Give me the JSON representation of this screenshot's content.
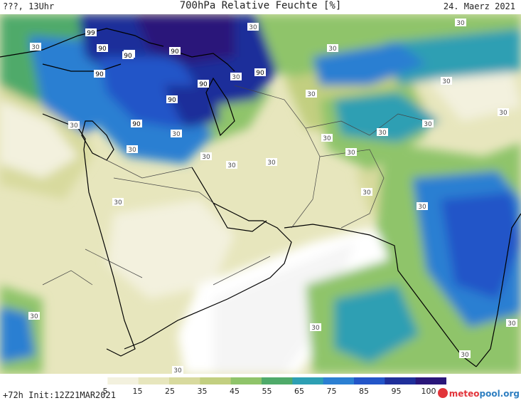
{
  "header": {
    "left": "???, 13Uhr",
    "title": "700hPa Relative Feuchte [%]",
    "date": "24. Maerz 2021"
  },
  "footer": {
    "run_info": "+72h Init:12Z21MAR2021",
    "brand_part1": "meteo",
    "brand_part2": "pool.org"
  },
  "legend": {
    "ticks": [
      "5",
      "15",
      "25",
      "35",
      "45",
      "55",
      "65",
      "75",
      "85",
      "95",
      "100"
    ],
    "colors": [
      "#ffffff",
      "#f3f1de",
      "#e7e6bd",
      "#d8da9e",
      "#c2cf80",
      "#8fc46a",
      "#4faa6a",
      "#2d9fb3",
      "#2b7fd2",
      "#2355c8",
      "#1f2f9a",
      "#2a167a"
    ]
  },
  "map_labels": {
    "values": [
      "99",
      "90",
      "90",
      "90",
      "90",
      "90",
      "90",
      "90",
      "90",
      "90",
      "30",
      "30",
      "30",
      "30",
      "30",
      "30",
      "30",
      "30",
      "30",
      "30",
      "30",
      "30",
      "30",
      "30",
      "30",
      "30",
      "30",
      "30",
      "30",
      "30",
      "30",
      "30",
      "30",
      "30",
      "30",
      "30"
    ]
  }
}
